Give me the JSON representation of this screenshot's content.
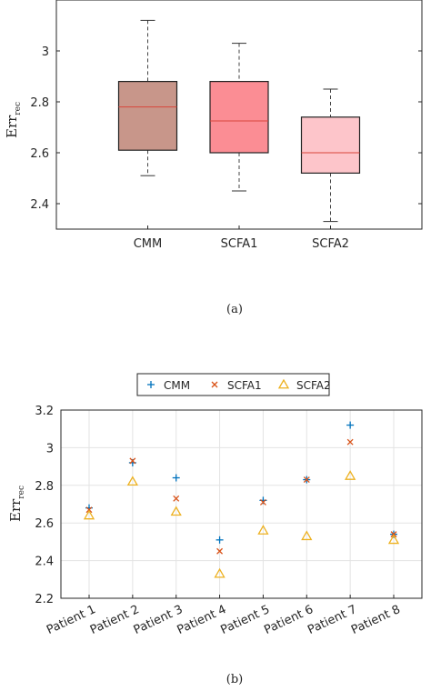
{
  "chart_data": [
    {
      "type": "box",
      "categories": [
        "CMM",
        "SCFA1",
        "SCFA2"
      ],
      "series": [
        {
          "name": "CMM",
          "min": 2.51,
          "q1": 2.61,
          "median": 2.78,
          "q3": 2.88,
          "max": 3.12,
          "color": "#c8968a"
        },
        {
          "name": "SCFA1",
          "min": 2.45,
          "q1": 2.6,
          "median": 2.725,
          "q3": 2.88,
          "max": 3.03,
          "color": "#fb8d94"
        },
        {
          "name": "SCFA2",
          "min": 2.33,
          "q1": 2.52,
          "median": 2.6,
          "q3": 2.74,
          "max": 2.85,
          "color": "#fdc5ca"
        }
      ],
      "ylabel_main": "Err",
      "ylabel_sub": "rec",
      "ylim": [
        2.3,
        3.2
      ],
      "yticks": [
        "2.4",
        "2.6",
        "2.8",
        "3"
      ],
      "ytick_values": [
        2.4,
        2.6,
        2.8,
        3.0
      ],
      "grid": false,
      "caption": "(a)"
    },
    {
      "type": "scatter",
      "categories": [
        "Patient 1",
        "Patient 2",
        "Patient 3",
        "Patient 4",
        "Patient 5",
        "Patient 6",
        "Patient 7",
        "Patient 8"
      ],
      "series": [
        {
          "name": "CMM",
          "marker": "plus",
          "color": "#0072bd",
          "values": [
            2.68,
            2.92,
            2.84,
            2.51,
            2.72,
            2.83,
            3.12,
            2.54
          ]
        },
        {
          "name": "SCFA1",
          "marker": "cross",
          "color": "#d95319",
          "values": [
            2.67,
            2.93,
            2.73,
            2.45,
            2.71,
            2.83,
            3.03,
            2.54
          ]
        },
        {
          "name": "SCFA2",
          "marker": "triangle",
          "color": "#edb120",
          "values": [
            2.64,
            2.82,
            2.66,
            2.33,
            2.56,
            2.53,
            2.85,
            2.51
          ]
        }
      ],
      "ylabel_main": "Err",
      "ylabel_sub": "rec",
      "ylim": [
        2.2,
        3.2
      ],
      "yticks": [
        "2.2",
        "2.4",
        "2.6",
        "2.8",
        "3",
        "3.2"
      ],
      "ytick_values": [
        2.2,
        2.4,
        2.6,
        2.8,
        3.0,
        3.2
      ],
      "grid": true,
      "legend": "top",
      "caption": "(b)"
    }
  ]
}
